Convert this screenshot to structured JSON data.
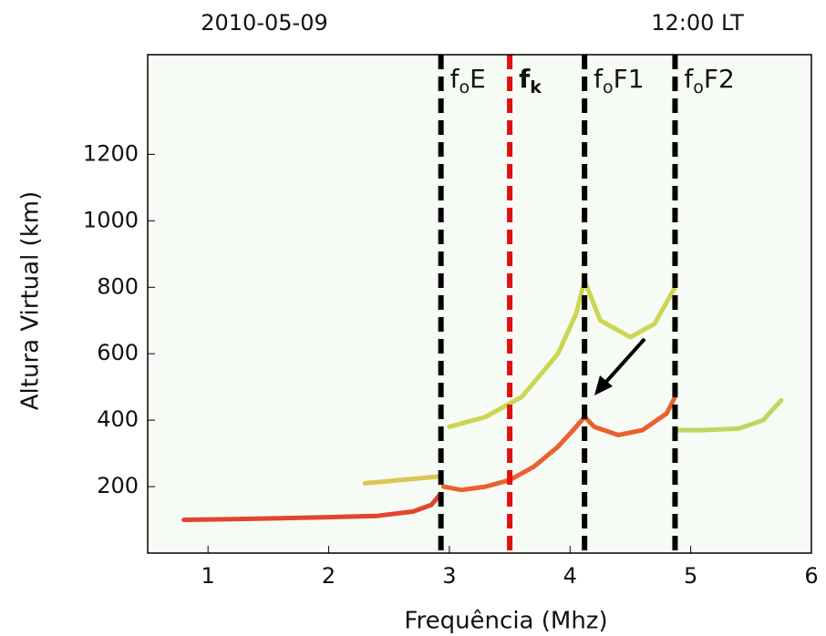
{
  "chart_data": {
    "type": "line",
    "title_left": "2010-05-09",
    "title_right": "12:00 LT",
    "xlabel": "Frequência (Mhz)",
    "ylabel": "Altura Virtual (km)",
    "xlim": [
      0.5,
      6
    ],
    "ylim": [
      0,
      1500
    ],
    "xticks": [
      1,
      2,
      3,
      4,
      5,
      6
    ],
    "yticks": [
      200,
      400,
      600,
      800,
      1000,
      1200
    ],
    "series": [
      {
        "color": "#e0301a",
        "x": [
          0.8,
          1.2,
          1.6,
          2.0,
          2.4,
          2.7,
          2.85,
          2.92
        ],
        "values": [
          100,
          102,
          105,
          108,
          112,
          125,
          145,
          175
        ]
      },
      {
        "color": "#e8501a",
        "x": [
          2.95,
          3.1,
          3.3,
          3.5,
          3.7,
          3.9,
          4.05,
          4.12,
          4.2,
          4.4,
          4.6,
          4.8,
          4.87
        ],
        "values": [
          200,
          190,
          200,
          220,
          260,
          320,
          380,
          410,
          380,
          355,
          370,
          420,
          470
        ]
      },
      {
        "color": "#c8d040",
        "x": [
          3.0,
          3.3,
          3.6,
          3.9,
          4.05,
          4.12,
          4.25,
          4.5,
          4.7,
          4.87
        ],
        "values": [
          380,
          410,
          470,
          600,
          720,
          820,
          700,
          650,
          690,
          800
        ]
      },
      {
        "color": "#b8d050",
        "x": [
          4.87,
          5.1,
          5.4,
          5.6,
          5.75
        ],
        "values": [
          370,
          370,
          375,
          400,
          460
        ]
      },
      {
        "color": "#d8c040",
        "x": [
          2.3,
          2.6,
          2.9
        ],
        "values": [
          210,
          220,
          230
        ]
      }
    ],
    "markers": [
      {
        "x": 2.93,
        "color": "#000000",
        "main": "f",
        "sub": "o",
        "suffix": "E"
      },
      {
        "x": 3.5,
        "color": "#e01010",
        "main": "f",
        "sub": "k",
        "suffix": ""
      },
      {
        "x": 4.12,
        "color": "#000000",
        "main": "f",
        "sub": "o",
        "suffix": "F1"
      },
      {
        "x": 4.87,
        "color": "#000000",
        "main": "f",
        "sub": "o",
        "suffix": "F2"
      }
    ]
  }
}
